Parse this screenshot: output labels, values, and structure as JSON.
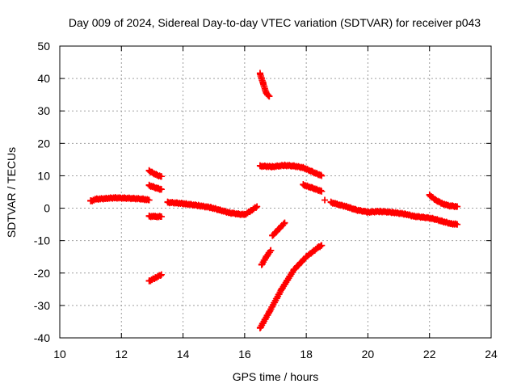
{
  "chart_data": {
    "type": "scatter",
    "title": "Day 009 of 2024, Sidereal Day-to-day VTEC variation (SDTVAR) for receiver p043",
    "xlabel": "GPS time / hours",
    "ylabel": "SDTVAR / TECUs",
    "xlim": [
      10,
      24
    ],
    "ylim": [
      -40,
      50
    ],
    "xticks": [
      10,
      12,
      14,
      16,
      18,
      20,
      22,
      24
    ],
    "yticks": [
      -40,
      -30,
      -20,
      -10,
      0,
      10,
      20,
      30,
      40,
      50
    ],
    "grid": true,
    "marker": "plus",
    "color": "#ff0000",
    "series": [
      {
        "name": "main-early",
        "points": [
          [
            11.0,
            2.2
          ],
          [
            11.2,
            2.8
          ],
          [
            11.5,
            3.0
          ],
          [
            11.8,
            3.2
          ],
          [
            12.1,
            3.1
          ],
          [
            12.4,
            3.0
          ],
          [
            12.7,
            2.8
          ],
          [
            12.9,
            2.5
          ]
        ]
      },
      {
        "name": "upper-13h",
        "points": [
          [
            12.9,
            11.5
          ],
          [
            13.0,
            11.0
          ],
          [
            13.15,
            10.2
          ],
          [
            13.3,
            9.8
          ]
        ]
      },
      {
        "name": "mid-13h",
        "points": [
          [
            12.9,
            7.0
          ],
          [
            13.05,
            6.5
          ],
          [
            13.2,
            6.0
          ],
          [
            13.3,
            5.8
          ]
        ]
      },
      {
        "name": "low-13h",
        "points": [
          [
            12.9,
            -2.5
          ],
          [
            13.1,
            -2.6
          ],
          [
            13.3,
            -2.6
          ]
        ]
      },
      {
        "name": "neg-13h",
        "points": [
          [
            12.9,
            -22.5
          ],
          [
            13.1,
            -21.5
          ],
          [
            13.3,
            -20.5
          ]
        ]
      },
      {
        "name": "main-mid",
        "points": [
          [
            13.5,
            1.8
          ],
          [
            13.8,
            1.6
          ],
          [
            14.1,
            1.3
          ],
          [
            14.5,
            0.8
          ],
          [
            14.9,
            0.2
          ],
          [
            15.2,
            -0.6
          ],
          [
            15.5,
            -1.4
          ],
          [
            15.8,
            -1.8
          ],
          [
            16.0,
            -2.0
          ],
          [
            16.2,
            -0.8
          ],
          [
            16.4,
            0.5
          ]
        ]
      },
      {
        "name": "steep-descent",
        "points": [
          [
            16.5,
            41.5
          ],
          [
            16.6,
            38.5
          ],
          [
            16.7,
            35.5
          ],
          [
            16.8,
            34.5
          ]
        ]
      },
      {
        "name": "steep-ascent",
        "points": [
          [
            16.5,
            -37.0
          ],
          [
            16.8,
            -32.0
          ],
          [
            17.2,
            -25.0
          ],
          [
            17.6,
            -19.0
          ],
          [
            18.0,
            -15.0
          ],
          [
            18.4,
            -12.0
          ],
          [
            18.5,
            -11.5
          ]
        ]
      },
      {
        "name": "neg-short-1",
        "points": [
          [
            16.55,
            -17.5
          ],
          [
            16.7,
            -15.0
          ],
          [
            16.85,
            -13.0
          ]
        ]
      },
      {
        "name": "neg-short-2",
        "points": [
          [
            16.9,
            -8.5
          ],
          [
            17.1,
            -6.5
          ],
          [
            17.3,
            -4.5
          ]
        ]
      },
      {
        "name": "upper-plateau",
        "points": [
          [
            16.5,
            13.0
          ],
          [
            16.9,
            12.8
          ],
          [
            17.3,
            13.2
          ],
          [
            17.6,
            13.0
          ],
          [
            17.9,
            12.5
          ],
          [
            18.2,
            11.2
          ],
          [
            18.5,
            10.0
          ]
        ]
      },
      {
        "name": "mid-18h",
        "points": [
          [
            17.9,
            7.2
          ],
          [
            18.2,
            6.2
          ],
          [
            18.5,
            5.2
          ]
        ]
      },
      {
        "name": "isolated",
        "points": [
          [
            18.6,
            2.5
          ]
        ]
      },
      {
        "name": "main-late",
        "points": [
          [
            18.8,
            1.8
          ],
          [
            19.0,
            1.2
          ],
          [
            19.3,
            0.5
          ],
          [
            19.6,
            -0.5
          ],
          [
            20.0,
            -1.2
          ],
          [
            20.4,
            -1.0
          ],
          [
            20.8,
            -1.3
          ],
          [
            21.2,
            -1.8
          ],
          [
            21.5,
            -2.5
          ],
          [
            21.8,
            -2.8
          ],
          [
            22.1,
            -3.2
          ],
          [
            22.4,
            -4.0
          ],
          [
            22.7,
            -4.8
          ],
          [
            22.9,
            -5.0
          ]
        ]
      },
      {
        "name": "upper-22h",
        "points": [
          [
            22.0,
            4.0
          ],
          [
            22.2,
            2.5
          ],
          [
            22.4,
            1.5
          ],
          [
            22.6,
            0.8
          ],
          [
            22.9,
            0.5
          ]
        ]
      }
    ]
  }
}
